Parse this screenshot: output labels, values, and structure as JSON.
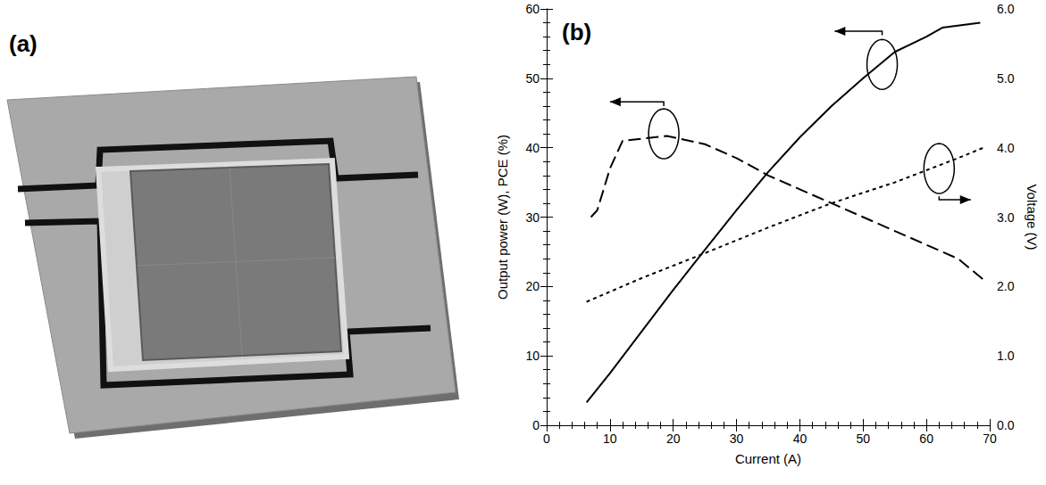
{
  "photo": {
    "label": "(a)"
  },
  "chart_data": {
    "type": "line",
    "title": "(b)",
    "x_label": "Current (A)",
    "y_label": "Output power (W), PCE (%)",
    "y2_label": "Voltage (V)",
    "xlim": [
      0,
      70
    ],
    "xticks": [
      0,
      10,
      20,
      30,
      40,
      50,
      60,
      70
    ],
    "ylim": [
      0,
      60
    ],
    "yticks": [
      0,
      10,
      20,
      30,
      40,
      50,
      60
    ],
    "y2lim": [
      0,
      6
    ],
    "y2ticks": [
      {
        "value": 0,
        "label": "0.0"
      },
      {
        "value": 1,
        "label": "1.0"
      },
      {
        "value": 2,
        "label": "2.0"
      },
      {
        "value": 3,
        "label": "3.0"
      },
      {
        "value": 4,
        "label": "4.0"
      },
      {
        "value": 5,
        "label": "5.0"
      },
      {
        "value": 6,
        "label": "6.0"
      }
    ],
    "grid": false,
    "series": [
      {
        "color": "#000000",
        "line_style": "solid",
        "x": [
          6.3,
          10,
          15,
          20,
          25,
          30,
          35,
          40,
          45,
          50,
          55,
          60,
          62.5,
          68.5
        ],
        "values": [
          3.3,
          7.5,
          13.5,
          19.5,
          25.3,
          31,
          36.5,
          41.5,
          46,
          50,
          53.8,
          56,
          57.3,
          58
        ]
      },
      {
        "color": "#000000",
        "line_style": "dashed",
        "x": [
          7,
          8,
          10,
          12,
          15,
          19,
          25,
          30,
          35,
          40,
          45,
          50,
          55,
          60,
          65,
          69
        ],
        "values": [
          30,
          31,
          37,
          41,
          41.3,
          41.7,
          40.5,
          38.5,
          36,
          34,
          32,
          30,
          28,
          26,
          24,
          21
        ]
      },
      {
        "color": "#000000",
        "line_style": "dotted",
        "axis": "y2",
        "x": [
          6.3,
          15,
          25,
          35,
          45,
          55,
          65,
          69
        ],
        "values": [
          1.78,
          2.12,
          2.48,
          2.85,
          3.2,
          3.5,
          3.85,
          4.0
        ]
      }
    ]
  }
}
